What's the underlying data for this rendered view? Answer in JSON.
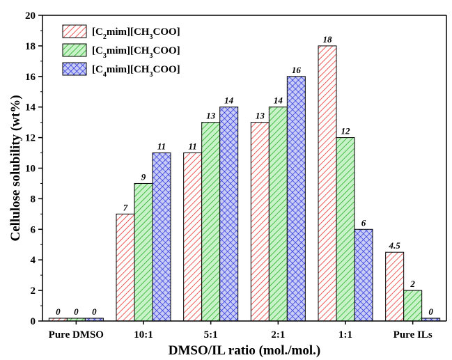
{
  "chart_data": {
    "type": "bar",
    "xlabel": "DMSO/IL ratio (mol./mol.)",
    "ylabel": "Cellulose solubility (wt%)",
    "ylim": [
      0,
      20
    ],
    "yticks": [
      0,
      2,
      4,
      6,
      8,
      10,
      12,
      14,
      16,
      18,
      20
    ],
    "categories": [
      "Pure DMSO",
      "10:1",
      "5:1",
      "2:1",
      "1:1",
      "Pure ILs"
    ],
    "legend_position": "top-left",
    "series": [
      {
        "name_parts": [
          [
            "[C",
            "n"
          ],
          [
            "2",
            "s"
          ],
          [
            "mim][CH",
            "n"
          ],
          [
            "3",
            "s"
          ],
          [
            "COO]",
            "n"
          ]
        ],
        "values": [
          0,
          7,
          11,
          13,
          18,
          4.5
        ],
        "labels": [
          "0",
          "7",
          "11",
          "13",
          "18",
          "4.5"
        ],
        "color": "#e8302e",
        "pattern": "diagonal-hatch"
      },
      {
        "name_parts": [
          [
            "[C",
            "n"
          ],
          [
            "3",
            "s"
          ],
          [
            "mim][CH",
            "n"
          ],
          [
            "3",
            "s"
          ],
          [
            "COO]",
            "n"
          ]
        ],
        "values": [
          0,
          9,
          13,
          14,
          12,
          2
        ],
        "labels": [
          "0",
          "9",
          "13",
          "14",
          "12",
          "2"
        ],
        "color": "#27b027",
        "pattern": "diagonal-hatch"
      },
      {
        "name_parts": [
          [
            "[C",
            "n"
          ],
          [
            "4",
            "s"
          ],
          [
            "mim][CH",
            "n"
          ],
          [
            "3",
            "s"
          ],
          [
            "COO]",
            "n"
          ]
        ],
        "values": [
          0,
          11,
          14,
          16,
          6,
          0
        ],
        "labels": [
          "0",
          "11",
          "14",
          "16",
          "6",
          "0"
        ],
        "color": "#1a22d8",
        "pattern": "cross-hatch"
      }
    ]
  }
}
